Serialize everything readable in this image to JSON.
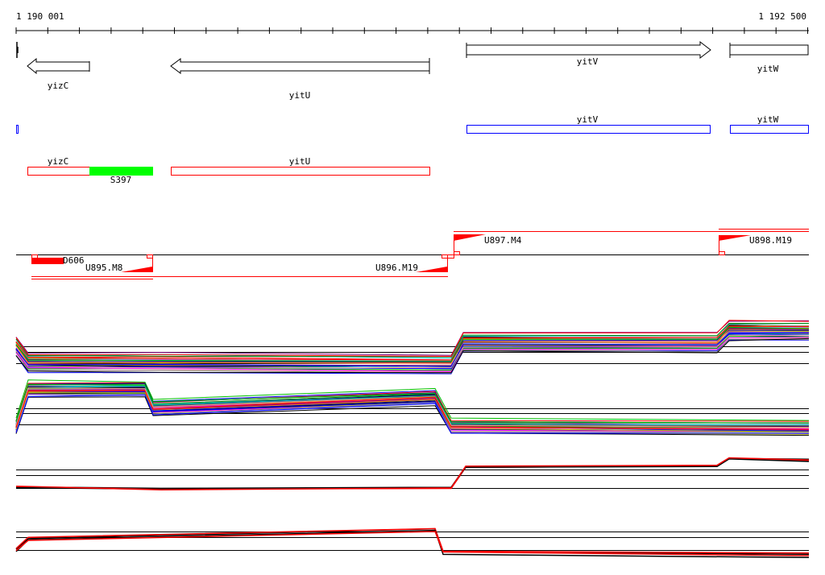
{
  "ruler": {
    "start_label": "1 190 001",
    "end_label": "1 192 500"
  },
  "genes": [
    {
      "name": "yizC",
      "strand": "-"
    },
    {
      "name": "yitU",
      "strand": "-"
    },
    {
      "name": "yitV",
      "strand": "+"
    },
    {
      "name": "yitW",
      "strand": "+"
    }
  ],
  "blue_track": [
    {
      "name": ""
    },
    {
      "name": "yitV"
    },
    {
      "name": "yitW"
    }
  ],
  "red_track": [
    {
      "name": "yizC"
    },
    {
      "name": "S397",
      "color": "#00ff00"
    },
    {
      "name": "yitU"
    }
  ],
  "segments": {
    "upper": [
      {
        "name": "U897.M4"
      },
      {
        "name": "U898.M19"
      }
    ],
    "lower": [
      {
        "name": "D606"
      },
      {
        "name": "U895.M8"
      },
      {
        "name": "U896.M19"
      }
    ]
  },
  "colors": {
    "accent": "#ff0000",
    "blue": "#0000ff",
    "green": "#00ff00"
  },
  "expression_palette": [
    "#ff0000",
    "#00c000",
    "#0000ff",
    "#ff00ff",
    "#00c0c0",
    "#c0c000",
    "#ff8000",
    "#800080",
    "#808080",
    "#008000",
    "#000080",
    "#ffa0a0",
    "#a0a0ff",
    "#000000"
  ]
}
